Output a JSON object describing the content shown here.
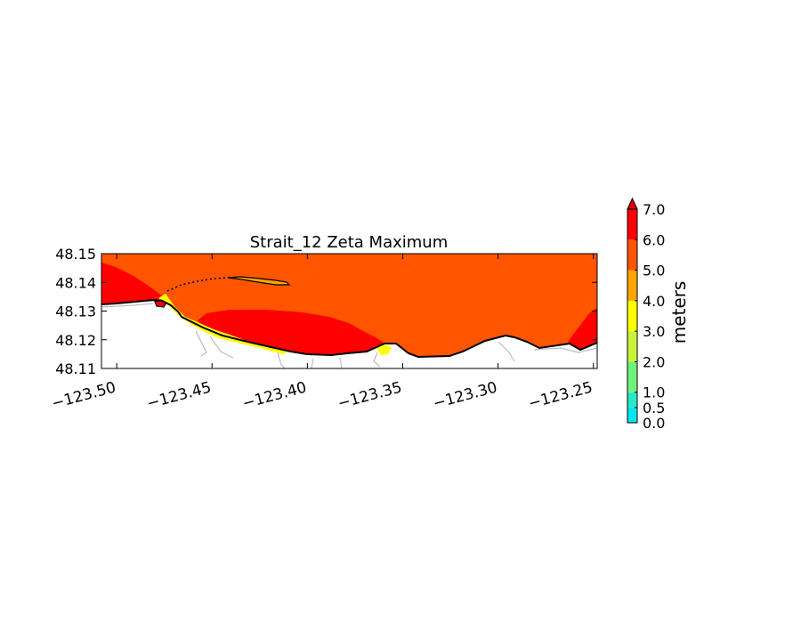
{
  "chart_data": {
    "type": "heatmap",
    "title": "Strait_12 Zeta Maximum",
    "xlabel": "",
    "ylabel": "",
    "xlim": [
      -123.508,
      -123.248
    ],
    "ylim": [
      48.11,
      48.15
    ],
    "x_ticks": [
      -123.5,
      -123.45,
      -123.4,
      -123.35,
      -123.3,
      -123.25
    ],
    "x_tick_labels": [
      "−123.50",
      "−123.45",
      "−123.40",
      "−123.35",
      "−123.30",
      "−123.25"
    ],
    "y_ticks": [
      48.11,
      48.12,
      48.13,
      48.14,
      48.15
    ],
    "y_tick_labels": [
      "48.11",
      "48.12",
      "48.13",
      "48.14",
      "48.15"
    ],
    "grid": false,
    "colorbar": {
      "label": "meters",
      "extend": "max",
      "extend_color": "#e60000",
      "levels": [
        0.0,
        0.5,
        1.0,
        2.0,
        3.0,
        4.0,
        5.0,
        6.0,
        7.0
      ],
      "tick_labels": [
        "0.0",
        "0.5",
        "1.0",
        "2.0",
        "3.0",
        "4.0",
        "5.0",
        "6.0",
        "7.0"
      ],
      "colors": [
        "#00e6f0",
        "#27e8c8",
        "#6ff27a",
        "#c8f33a",
        "#ffff00",
        "#ffa500",
        "#ff5500",
        "#ff0000"
      ]
    },
    "regions": [
      {
        "name": "open-water",
        "level_range": [
          5.0,
          6.0
        ],
        "color": "#ff5500"
      },
      {
        "name": "northwest-high",
        "level_range": [
          6.0,
          7.0
        ],
        "color": "#ff0000"
      },
      {
        "name": "central-nearshore-high",
        "level_range": [
          6.0,
          7.0
        ],
        "color": "#ff0000"
      },
      {
        "name": "east-high",
        "level_range": [
          6.0,
          7.0
        ],
        "color": "#ff0000"
      },
      {
        "name": "spit",
        "level_range": [
          4.0,
          5.0
        ],
        "color": "#ffa500"
      },
      {
        "name": "nearshore-shallow",
        "level_range": [
          2.0,
          5.0
        ],
        "color": "#ffff00"
      },
      {
        "name": "land",
        "level_range": null,
        "color": "#ffffff"
      }
    ]
  }
}
